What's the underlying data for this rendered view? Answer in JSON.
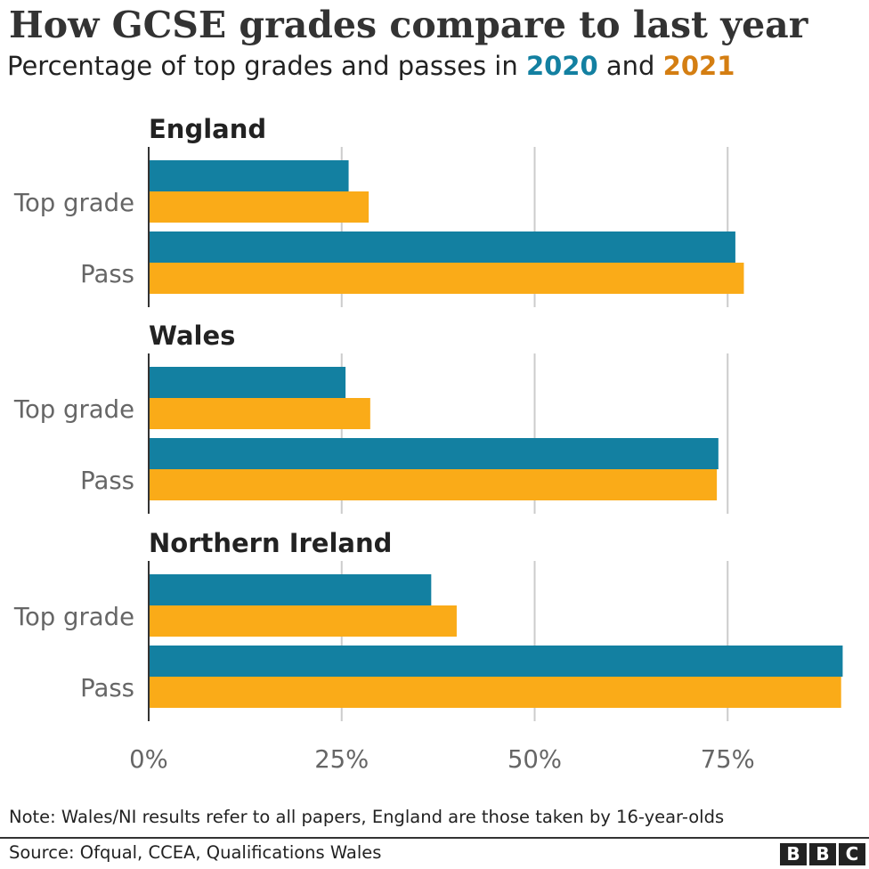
{
  "title_text": "How GCSE grades compare to last year",
  "subtitle": {
    "prefix": "Percentage of top grades and passes in ",
    "year1": "2020",
    "middle": " and ",
    "year2": "2021"
  },
  "note": "Note: Wales/NI results refer to all papers, England are those taken by 16-year-olds",
  "source": "Source: Ofqual, CCEA, Qualifications Wales",
  "logo_letters": [
    "B",
    "B",
    "C"
  ],
  "colors": {
    "2020": "#1380A1",
    "2021": "#FAAB18"
  },
  "chart_data": {
    "type": "bar",
    "orientation": "horizontal",
    "unit": "%",
    "xlim": [
      0,
      90
    ],
    "x_ticks": [
      0,
      25,
      50,
      75
    ],
    "x_tick_labels": [
      "0%",
      "25%",
      "50%",
      "75%"
    ],
    "grid": true,
    "categories": [
      "Top grade",
      "Pass"
    ],
    "series_names": [
      "2020",
      "2021"
    ],
    "panels": [
      {
        "name": "England",
        "series": [
          {
            "name": "2020",
            "values": [
              25.9,
              76.0
            ]
          },
          {
            "name": "2021",
            "values": [
              28.5,
              77.1
            ]
          }
        ]
      },
      {
        "name": "Wales",
        "series": [
          {
            "name": "2020",
            "values": [
              25.5,
              73.8
            ]
          },
          {
            "name": "2021",
            "values": [
              28.7,
              73.6
            ]
          }
        ]
      },
      {
        "name": "Northern Ireland",
        "series": [
          {
            "name": "2020",
            "values": [
              36.6,
              89.9
            ]
          },
          {
            "name": "2021",
            "values": [
              39.9,
              89.7
            ]
          }
        ]
      }
    ]
  }
}
